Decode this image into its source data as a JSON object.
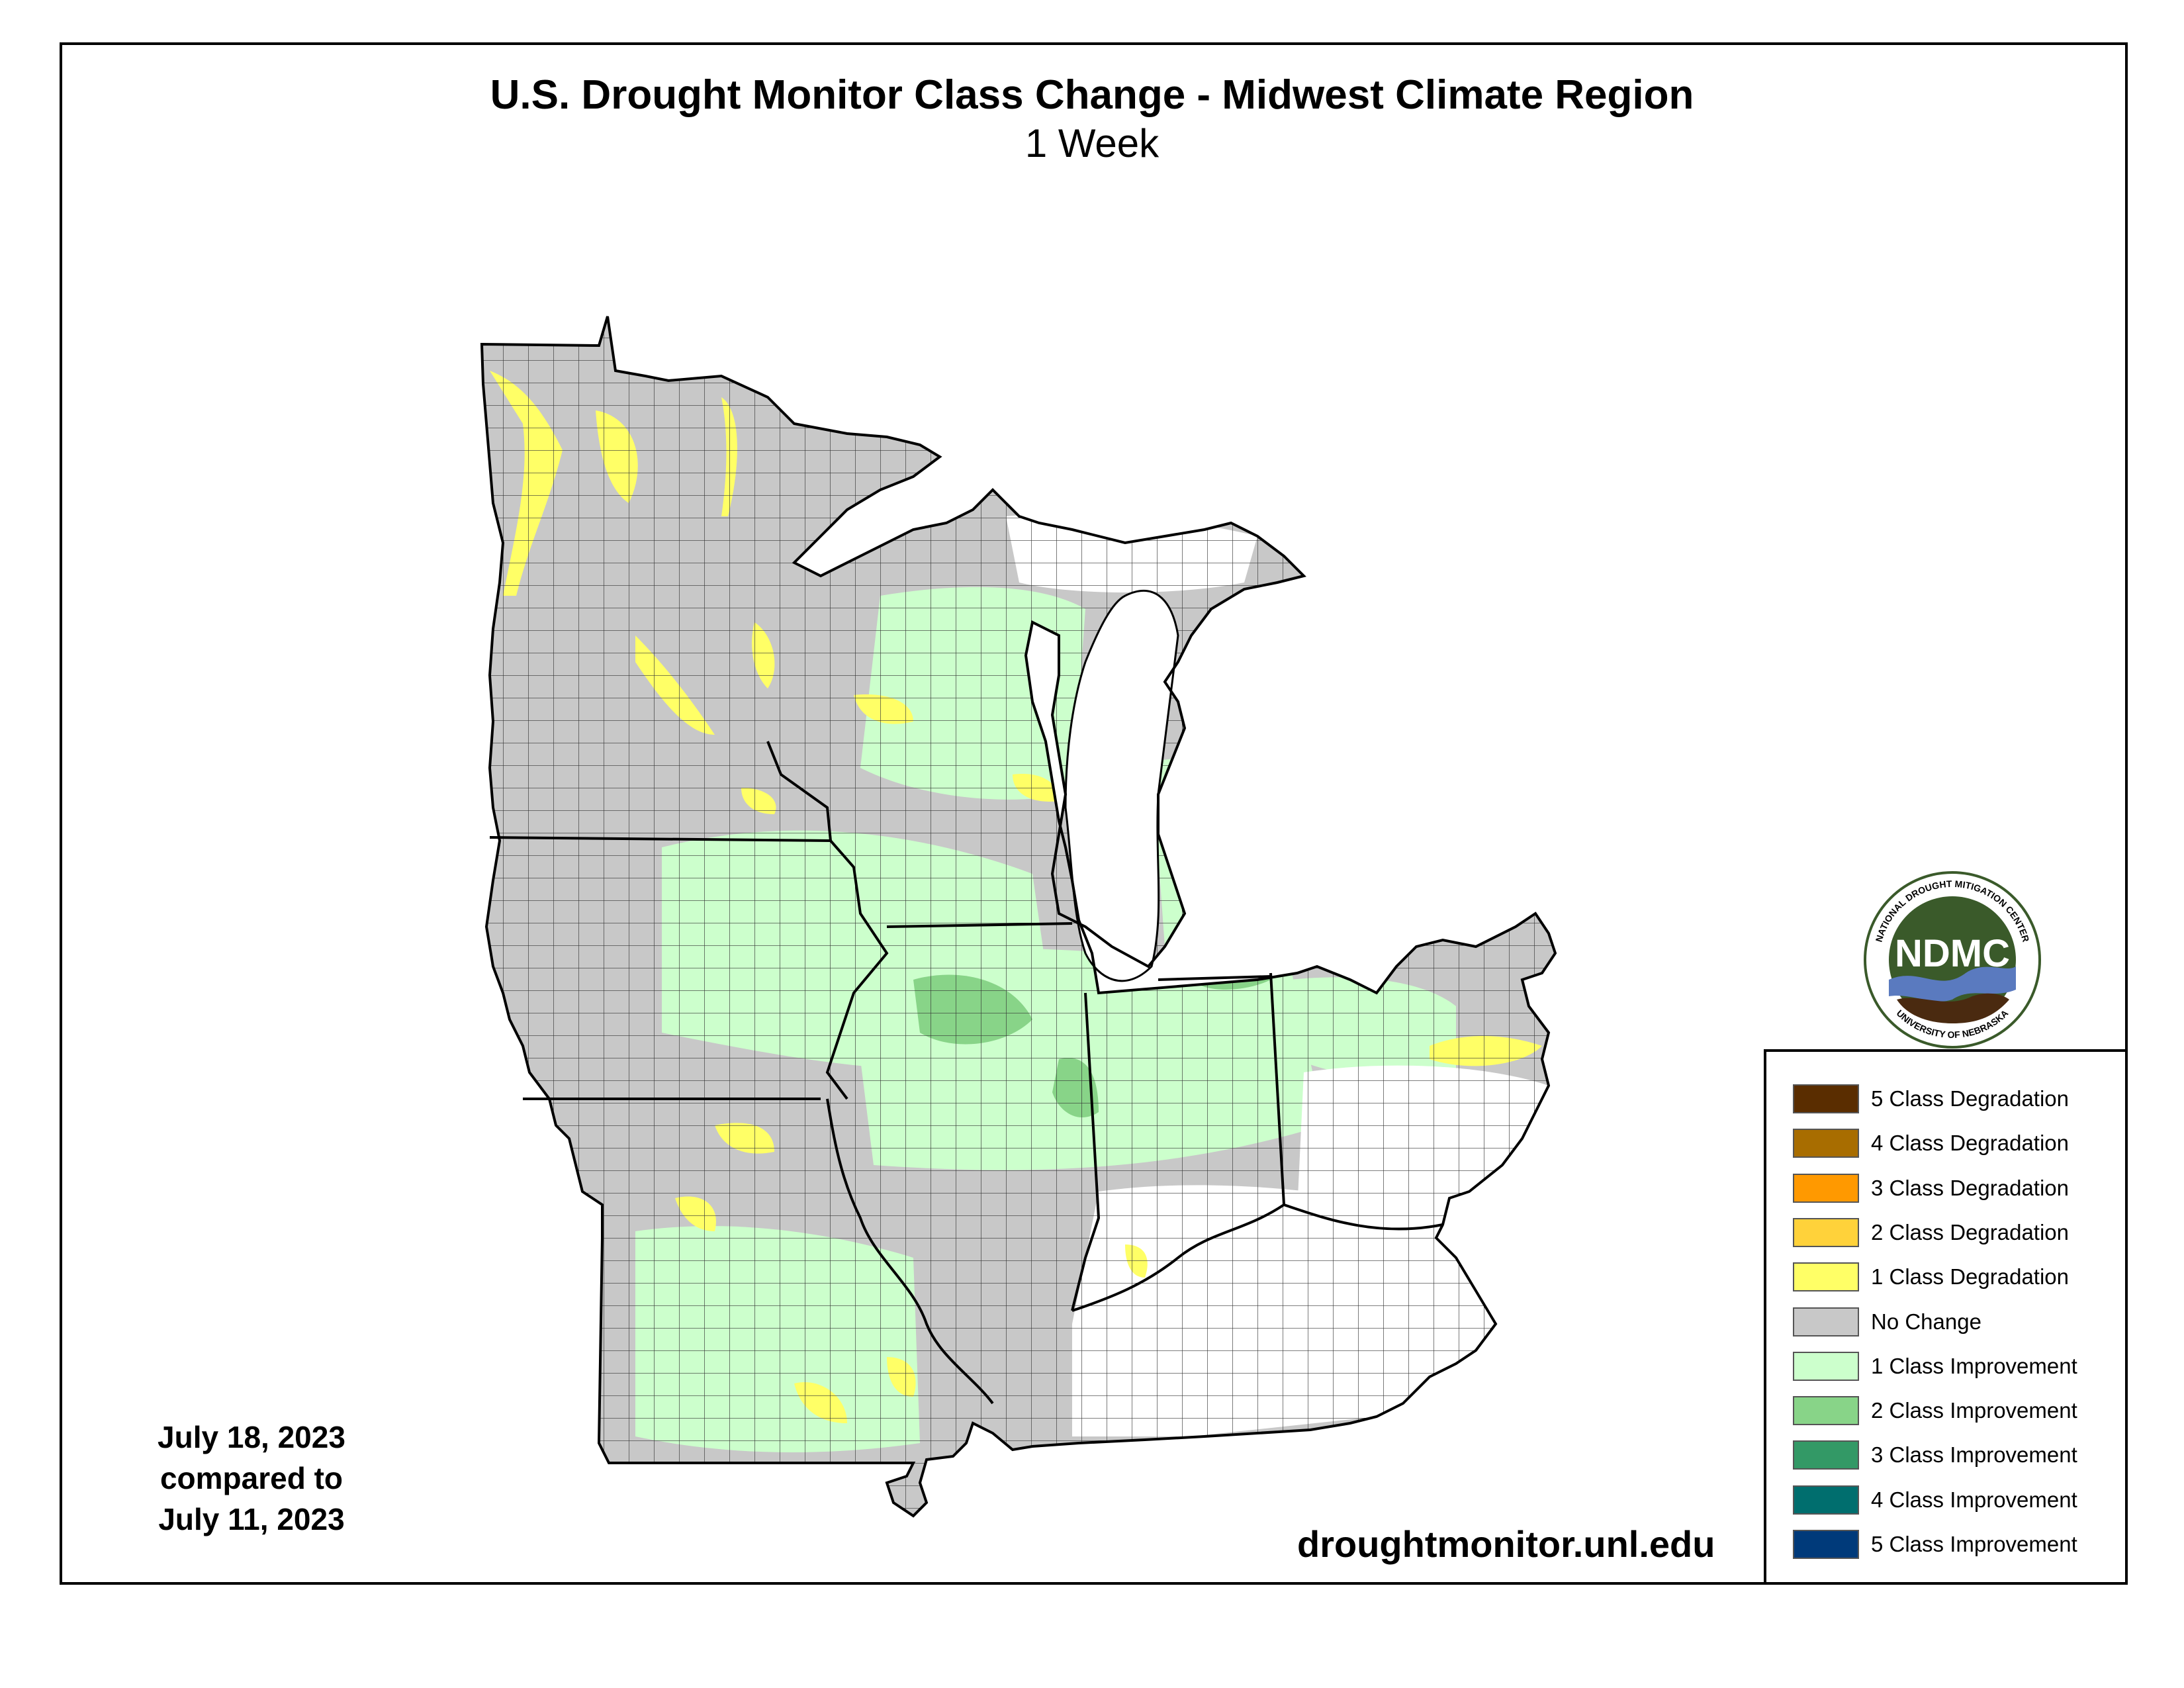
{
  "title": "U.S. Drought Monitor Class Change - Midwest Climate Region",
  "subtitle": "1 Week",
  "date_block": {
    "line1": "July 18, 2023",
    "line2": "compared to",
    "line3": "July 11, 2023"
  },
  "url": "droughtmonitor.unl.edu",
  "logo": {
    "center_text": "NDMC",
    "ring_top_text": "NATIONAL DROUGHT MITIGATION CENTER",
    "ring_bottom_text": "UNIVERSITY OF NEBRASKA"
  },
  "legend": [
    {
      "label": "5 Class Degradation",
      "color": "#5a2d00"
    },
    {
      "label": "4 Class Degradation",
      "color": "#a86d00"
    },
    {
      "label": "3 Class Degradation",
      "color": "#ff9900"
    },
    {
      "label": "2 Class Degradation",
      "color": "#ffd23a"
    },
    {
      "label": "1 Class Degradation",
      "color": "#ffff66"
    },
    {
      "label": "No Change",
      "color": "#c8c8c8"
    },
    {
      "label": "1 Class Improvement",
      "color": "#ccffcc"
    },
    {
      "label": "2 Class Improvement",
      "color": "#88d488"
    },
    {
      "label": "3 Class Improvement",
      "color": "#339966"
    },
    {
      "label": "4 Class Improvement",
      "color": "#006e6e"
    },
    {
      "label": "5 Class Improvement",
      "color": "#003a7a"
    }
  ],
  "colors": {
    "no_change": "#c8c8c8",
    "improve_1": "#ccffcc",
    "improve_2": "#88d488",
    "degrade_1": "#ffff66",
    "degrade_2": "#ffd23a",
    "no_data": "#ffffff",
    "lake": "#ffffff",
    "logo_green": "#3a5a2a",
    "logo_blue": "#5a7abf",
    "logo_brown": "#4a2a10"
  }
}
